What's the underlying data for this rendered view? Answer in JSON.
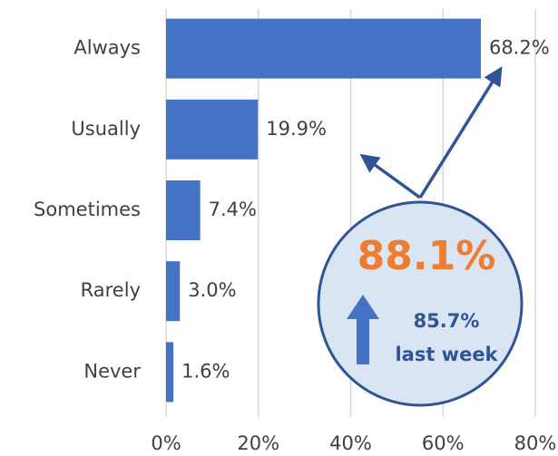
{
  "chart_data": {
    "type": "bar",
    "orientation": "horizontal",
    "categories": [
      "Always",
      "Usually",
      "Sometimes",
      "Rarely",
      "Never"
    ],
    "values": [
      68.2,
      19.9,
      7.4,
      3.0,
      1.6
    ],
    "value_labels": [
      "68.2%",
      "19.9%",
      "7.4%",
      "3.0%",
      "1.6%"
    ],
    "color": "#4472c4",
    "xlim": [
      0,
      80
    ],
    "xticks": [
      {
        "value": 0,
        "label": "0%"
      },
      {
        "value": 20,
        "label": "20%"
      },
      {
        "value": 40,
        "label": "40%"
      },
      {
        "value": 60,
        "label": "60%"
      },
      {
        "value": 80,
        "label": "80%"
      }
    ],
    "grid": true,
    "annotations": {
      "current": "88.1%",
      "previous": "85.7%",
      "previous_label": "last week"
    }
  }
}
